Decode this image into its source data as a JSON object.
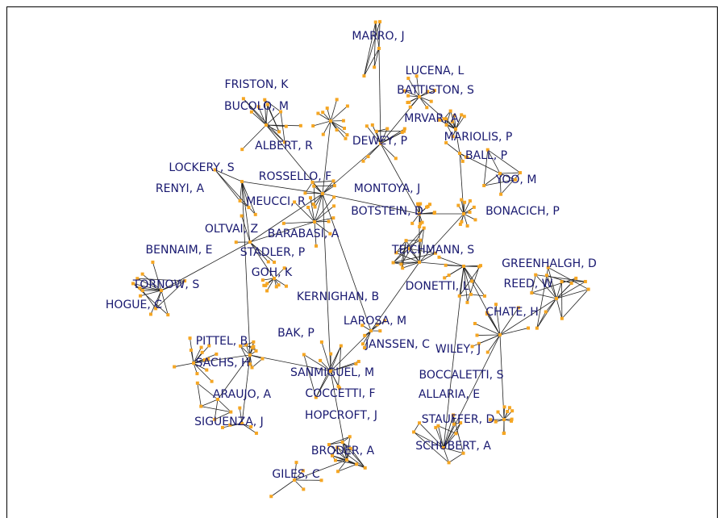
{
  "nodes": [
    {
      "label": "MARRO, J"
    },
    {
      "label": "LUCENA, L"
    },
    {
      "label": "BATTISTON, S"
    },
    {
      "label": "FRISTON, K"
    },
    {
      "label": "BUCOLO, M"
    },
    {
      "label": "MRVAR, A"
    },
    {
      "label": "MARIOLIS, P"
    },
    {
      "label": "DEWEY, P"
    },
    {
      "label": "ALBERT, R"
    },
    {
      "label": "BALL, P"
    },
    {
      "label": "LOCKERY, S"
    },
    {
      "label": "ROSSELLO, F"
    },
    {
      "label": "YOO, M"
    },
    {
      "label": "RENYI, A"
    },
    {
      "label": "MONTOYA, J"
    },
    {
      "label": "MEUCCI, R"
    },
    {
      "label": "BOTSTEIN, D"
    },
    {
      "label": "BONACICH, P"
    },
    {
      "label": "OLTVAI, Z"
    },
    {
      "label": "BARABASI, A"
    },
    {
      "label": "BENNAIM, E"
    },
    {
      "label": "TEICHMANN, S"
    },
    {
      "label": "STADLER, P"
    },
    {
      "label": "GREENHALGH, D"
    },
    {
      "label": "GOH, K"
    },
    {
      "label": "DONETTI, L"
    },
    {
      "label": "REED, W"
    },
    {
      "label": "TORNOW, S"
    },
    {
      "label": "KERNIGHAN, B"
    },
    {
      "label": "HOGUE, C"
    },
    {
      "label": "CHATE, H"
    },
    {
      "label": "LAROSA, M"
    },
    {
      "label": "BAK, P"
    },
    {
      "label": "PITTEL, B"
    },
    {
      "label": "JANSSEN, C"
    },
    {
      "label": "WILEY, J"
    },
    {
      "label": "SACHS, H"
    },
    {
      "label": "SANMIGUEL, M"
    },
    {
      "label": "BOCCALETTI, S"
    },
    {
      "label": "COCCETTI, F"
    },
    {
      "label": "ARAUJO, A"
    },
    {
      "label": "ALLARIA, E"
    },
    {
      "label": "HOPCROFT, J"
    },
    {
      "label": "STAUFFER, D"
    },
    {
      "label": "SIGUENZA, J"
    },
    {
      "label": "SCHUBERT, A"
    },
    {
      "label": "BRODER, A"
    },
    {
      "label": "GILES, C"
    }
  ]
}
